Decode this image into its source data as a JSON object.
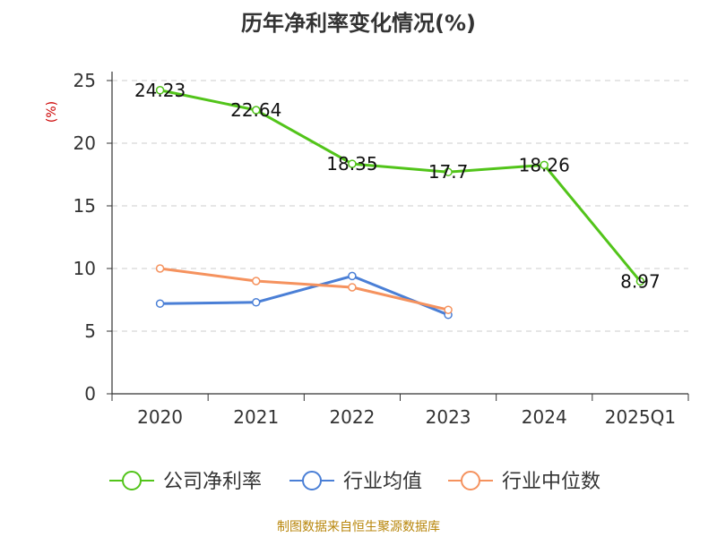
{
  "chart_data": {
    "type": "line",
    "title": "历年净利率变化情况(%)",
    "ylabel": "(%)",
    "xlabel": "",
    "categories": [
      "2020",
      "2021",
      "2022",
      "2023",
      "2024",
      "2025Q1"
    ],
    "ylim": [
      0,
      25
    ],
    "yticks": [
      0,
      5,
      10,
      15,
      20,
      25
    ],
    "grid": true,
    "legend_position": "bottom",
    "series": [
      {
        "name": "公司净利率",
        "color": "#52c41a",
        "values": [
          24.23,
          22.64,
          18.35,
          17.7,
          18.26,
          8.97
        ],
        "labels": true
      },
      {
        "name": "行业均值",
        "color": "#4a7fd6",
        "values": [
          7.2,
          7.3,
          9.4,
          6.3,
          null,
          null
        ],
        "labels": false
      },
      {
        "name": "行业中位数",
        "color": "#f5925e",
        "values": [
          10.0,
          9.0,
          8.5,
          6.7,
          null,
          null
        ],
        "labels": false
      }
    ]
  },
  "footer": "制图数据来自恒生聚源数据库"
}
